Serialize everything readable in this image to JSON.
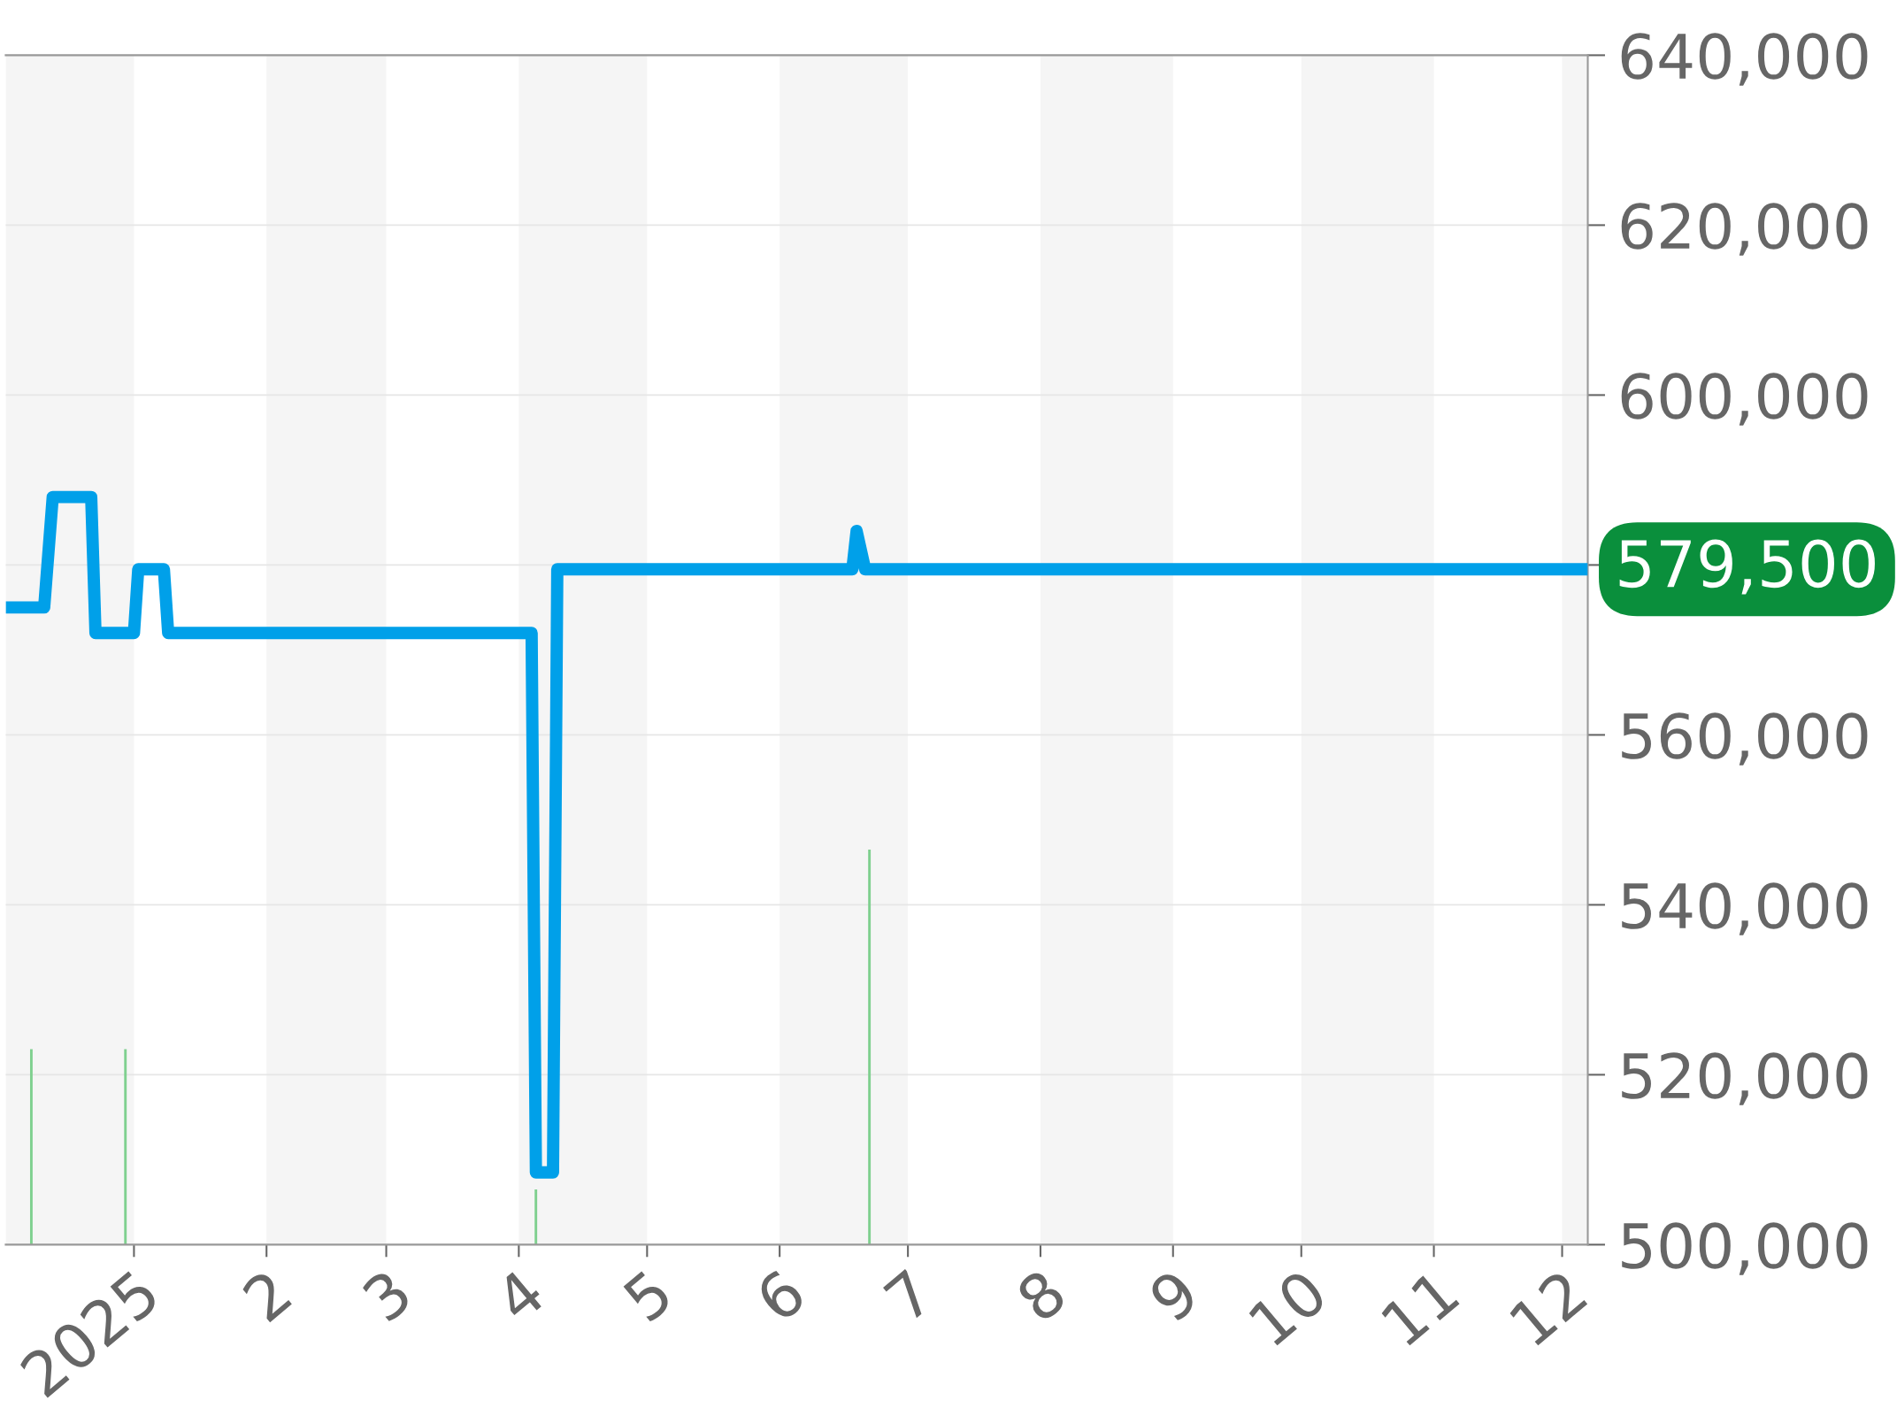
{
  "chart_data": {
    "type": "line",
    "series": [
      {
        "type": "bar",
        "color": "#7fd08f",
        "x": [
          "2024-12-08",
          "2024-12-30",
          "2025-04-05",
          "2025-06-22"
        ],
        "values": [
          523000,
          523000,
          506500,
          546500
        ]
      },
      {
        "color": "#00a0e9",
        "x": [
          "2024-12-02",
          "2024-12-11",
          "2024-12-13",
          "2024-12-22",
          "2024-12-23",
          "2025-01-01",
          "2025-01-02",
          "2025-01-08",
          "2025-01-09",
          "2025-04-04",
          "2025-04-05",
          "2025-04-09",
          "2025-04-10",
          "2025-06-18",
          "2025-06-19",
          "2025-06-21",
          "2025-12-07"
        ],
        "values": [
          575000,
          575000,
          588000,
          588000,
          572000,
          572000,
          579500,
          579500,
          572000,
          572000,
          508500,
          508500,
          579500,
          579500,
          584000,
          579500,
          579500
        ]
      }
    ],
    "xlim": [
      "2024-12-02",
      "2025-12-07"
    ],
    "xticks": [
      {
        "value": "2025-01-01",
        "label": "2025"
      },
      {
        "value": "2025-02-01",
        "label": "2"
      },
      {
        "value": "2025-03-01",
        "label": "3"
      },
      {
        "value": "2025-04-01",
        "label": "4"
      },
      {
        "value": "2025-05-01",
        "label": "5"
      },
      {
        "value": "2025-06-01",
        "label": "6"
      },
      {
        "value": "2025-07-01",
        "label": "7"
      },
      {
        "value": "2025-08-01",
        "label": "8"
      },
      {
        "value": "2025-09-01",
        "label": "9"
      },
      {
        "value": "2025-10-01",
        "label": "10"
      },
      {
        "value": "2025-11-01",
        "label": "11"
      },
      {
        "value": "2025-12-01",
        "label": "12"
      }
    ],
    "ylim": [
      500000,
      640000
    ],
    "yticks": [
      {
        "value": 500000,
        "label": "500,000"
      },
      {
        "value": 520000,
        "label": "520,000"
      },
      {
        "value": 540000,
        "label": "540,000"
      },
      {
        "value": 560000,
        "label": "560,000"
      },
      {
        "value": 580000,
        "label": null
      },
      {
        "value": 600000,
        "label": "600,000"
      },
      {
        "value": 620000,
        "label": "620,000"
      },
      {
        "value": 640000,
        "label": "640,000"
      }
    ],
    "bands": [
      {
        "axis": "x",
        "from": "2024-12-02",
        "to": "2025-01-01",
        "color": "#f5f5f5"
      },
      {
        "axis": "x",
        "from": "2025-02-01",
        "to": "2025-03-01",
        "color": "#f5f5f5"
      },
      {
        "axis": "x",
        "from": "2025-04-01",
        "to": "2025-05-01",
        "color": "#f5f5f5"
      },
      {
        "axis": "x",
        "from": "2025-06-01",
        "to": "2025-07-01",
        "color": "#f5f5f5"
      },
      {
        "axis": "x",
        "from": "2025-08-01",
        "to": "2025-09-01",
        "color": "#f5f5f5"
      },
      {
        "axis": "x",
        "from": "2025-10-01",
        "to": "2025-11-01",
        "color": "#f5f5f5"
      },
      {
        "axis": "x",
        "from": "2025-12-01",
        "to": "2025-12-07",
        "color": "#f5f5f5"
      }
    ],
    "annotations": [
      {
        "text": "579,500",
        "x": "2025-12-07",
        "y": 579500
      }
    ],
    "grid": "y",
    "legend": false,
    "marker": "none",
    "line_style": "solid"
  }
}
